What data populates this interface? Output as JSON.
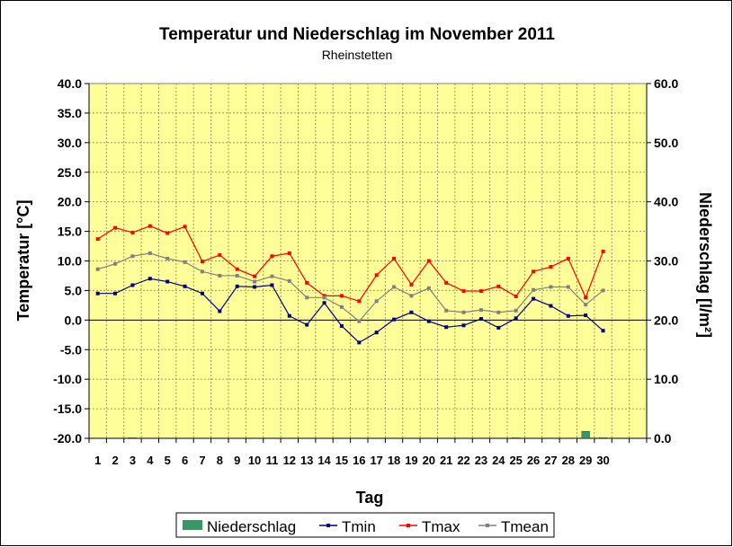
{
  "chart_data": {
    "type": "line",
    "title": "Temperatur und Niederschlag im November 2011",
    "subtitle": "Rheinstetten",
    "xlabel": "Tag",
    "ylabel": "Temperatur [°C]",
    "y2label": "Niederschlag [l/m²]",
    "ylim": [
      -20,
      40
    ],
    "y2lim": [
      0,
      60
    ],
    "y_ticks": [
      "40.0",
      "35.0",
      "30.0",
      "25.0",
      "20.0",
      "15.0",
      "10.0",
      "5.0",
      "0.0",
      "-5.0",
      "-10.0",
      "-15.0",
      "-20.0"
    ],
    "y2_ticks": [
      "60.0",
      "50.0",
      "40.0",
      "30.0",
      "20.0",
      "10.0",
      "0.0"
    ],
    "categories": [
      "1",
      "2",
      "3",
      "4",
      "5",
      "6",
      "7",
      "8",
      "9",
      "10",
      "11",
      "12",
      "13",
      "14",
      "15",
      "16",
      "17",
      "18",
      "19",
      "20",
      "21",
      "22",
      "23",
      "24",
      "25",
      "26",
      "27",
      "28",
      "29",
      "30"
    ],
    "grid": true,
    "legend_position": "bottom",
    "series": [
      {
        "name": "Niederschlag",
        "type": "bar",
        "axis": "right",
        "color": "#339966",
        "values": [
          0,
          0,
          0.1,
          0,
          0,
          0,
          0,
          0,
          0,
          0,
          0,
          0,
          0,
          0,
          0,
          0,
          0,
          0,
          0,
          0,
          0,
          0,
          0,
          0,
          0.1,
          0,
          0,
          0,
          1.2,
          0.1
        ]
      },
      {
        "name": "Tmin",
        "type": "line",
        "axis": "left",
        "color": "#000080",
        "values": [
          4.5,
          4.5,
          5.9,
          7.0,
          6.5,
          5.7,
          4.5,
          1.5,
          5.7,
          5.6,
          5.9,
          0.7,
          -0.8,
          2.9,
          -1.0,
          -3.8,
          -2.1,
          0.1,
          1.3,
          -0.2,
          -1.2,
          -0.9,
          0.2,
          -1.3,
          0.3,
          3.6,
          2.4,
          0.7,
          0.8,
          -1.8
        ]
      },
      {
        "name": "Tmax",
        "type": "line",
        "axis": "left",
        "color": "#ff0000",
        "values": [
          13.7,
          15.6,
          14.8,
          15.9,
          14.7,
          15.8,
          9.9,
          11.0,
          8.6,
          7.4,
          10.8,
          11.3,
          6.3,
          4.1,
          4.1,
          3.2,
          7.6,
          10.4,
          6.0,
          10.0,
          6.3,
          4.9,
          4.9,
          5.7,
          4.0,
          8.2,
          9.0,
          10.4,
          3.8,
          11.6
        ]
      },
      {
        "name": "Tmean",
        "type": "line",
        "axis": "left",
        "color": "#808080",
        "values": [
          8.6,
          9.5,
          10.8,
          11.3,
          10.4,
          9.8,
          8.2,
          7.5,
          7.5,
          6.5,
          7.4,
          6.6,
          3.8,
          3.8,
          2.2,
          -0.2,
          3.2,
          5.6,
          4.1,
          5.4,
          1.6,
          1.3,
          1.7,
          1.3,
          1.6,
          5.1,
          5.6,
          5.6,
          2.6,
          5.0
        ]
      }
    ]
  }
}
